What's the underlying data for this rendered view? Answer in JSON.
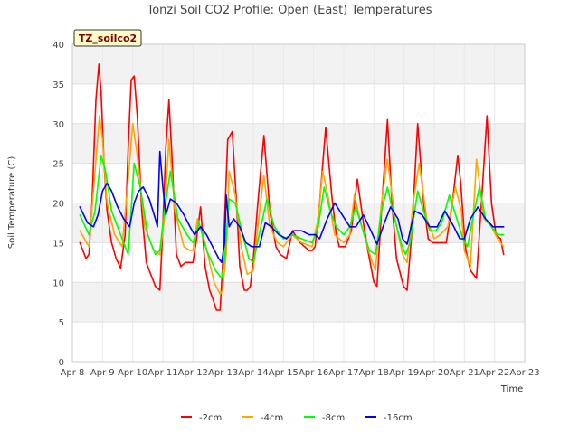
{
  "chart_data": {
    "type": "line",
    "title": "Tonzi Soil CO2 Profile: Open (East) Temperatures",
    "xlabel": "Time",
    "ylabel": "Soil Temperature (C)",
    "badge": "TZ_soilco2",
    "ylim": [
      0,
      40
    ],
    "yticks": [
      "0",
      "5",
      "10",
      "15",
      "20",
      "25",
      "30",
      "35",
      "40"
    ],
    "xlim": [
      8,
      23
    ],
    "xticks": [
      "Apr 8",
      "Apr 9",
      "Apr 10",
      "Apr 11",
      "Apr 12",
      "Apr 13",
      "Apr 14",
      "Apr 15",
      "Apr 16",
      "Apr 17",
      "Apr 18",
      "Apr 19",
      "Apr 20",
      "Apr 21",
      "Apr 22",
      "Apr 23"
    ],
    "grid": true,
    "legend_position": "bottom",
    "series": [
      {
        "name": "-2cm",
        "color": "#ff0000",
        "x": [
          8.25,
          8.45,
          8.55,
          8.65,
          8.78,
          8.88,
          8.95,
          9.05,
          9.15,
          9.3,
          9.45,
          9.6,
          9.75,
          9.85,
          9.95,
          10.05,
          10.15,
          10.3,
          10.45,
          10.6,
          10.75,
          10.9,
          11.0,
          11.1,
          11.2,
          11.3,
          11.45,
          11.6,
          11.75,
          11.9,
          12.0,
          12.1,
          12.25,
          12.4,
          12.55,
          12.65,
          12.78,
          12.9,
          12.98,
          13.05,
          13.15,
          13.3,
          13.45,
          13.55,
          13.7,
          13.8,
          13.9,
          14.0,
          14.15,
          14.35,
          14.55,
          14.75,
          14.9,
          15.1,
          15.3,
          15.55,
          15.7,
          15.85,
          15.95,
          16.05,
          16.2,
          16.4,
          16.6,
          16.75,
          16.85,
          16.95,
          17.05,
          17.25,
          17.45,
          17.65,
          17.8,
          17.9,
          18.0,
          18.1,
          18.25,
          18.45,
          18.6,
          18.75,
          18.88,
          18.98,
          19.1,
          19.25,
          19.45,
          19.65,
          19.8,
          19.95,
          20.05,
          20.2,
          20.4,
          20.6,
          20.78,
          20.88,
          20.98,
          21.05,
          21.2,
          21.4,
          21.6,
          21.75,
          21.9,
          22.05,
          22.2,
          22.3
        ],
        "values": [
          15,
          13,
          13.5,
          20,
          33,
          37.5,
          34,
          25,
          19,
          15,
          13,
          11.8,
          16,
          27,
          35.5,
          36,
          31,
          19,
          12.5,
          11,
          9.5,
          9,
          17,
          27,
          33,
          26,
          13.5,
          12,
          12.5,
          12.5,
          12.5,
          15,
          19.5,
          12,
          9,
          8,
          6.5,
          6.5,
          12,
          18,
          28,
          29,
          19.5,
          12,
          9,
          9,
          9.5,
          13,
          20,
          28.5,
          19,
          14.5,
          13.5,
          13,
          16.5,
          15,
          14.5,
          14,
          14,
          14.5,
          20,
          29.5,
          21,
          16,
          14.5,
          14.5,
          14.5,
          16.5,
          23,
          17.5,
          14,
          12,
          10,
          9.5,
          19,
          30.5,
          20,
          13,
          11,
          9.5,
          9,
          16,
          30,
          20,
          15.5,
          15,
          15,
          15,
          15,
          20,
          26,
          22.5,
          17,
          14,
          11.5,
          10.5,
          22,
          31,
          20,
          16,
          15.5,
          13.5
        ]
      },
      {
        "name": "-4cm",
        "color": "#ffa500",
        "x": [
          8.25,
          8.55,
          8.75,
          8.9,
          9.0,
          9.15,
          9.4,
          9.65,
          9.85,
          10.0,
          10.15,
          10.4,
          10.7,
          10.9,
          11.05,
          11.2,
          11.4,
          11.7,
          11.9,
          12.0,
          12.15,
          12.4,
          12.7,
          12.9,
          12.98,
          13.1,
          13.2,
          13.4,
          13.6,
          13.8,
          14.0,
          14.15,
          14.35,
          14.55,
          14.8,
          15.0,
          15.3,
          15.6,
          15.95,
          16.15,
          16.3,
          16.5,
          16.7,
          17.0,
          17.2,
          17.35,
          17.6,
          17.9,
          18.05,
          18.25,
          18.45,
          18.7,
          18.95,
          19.1,
          19.3,
          19.5,
          19.75,
          20.0,
          20.2,
          20.45,
          20.7,
          20.9,
          21.0,
          21.2,
          21.4,
          21.65,
          21.9,
          22.1,
          22.3
        ],
        "values": [
          16.5,
          14.5,
          24,
          31,
          28,
          20,
          16,
          14.5,
          23,
          30,
          26,
          17,
          14,
          13.5,
          18,
          28,
          19,
          14.5,
          14,
          14,
          18,
          15,
          10,
          8.5,
          9,
          13.5,
          24,
          21,
          14.5,
          11,
          11.5,
          17,
          23.5,
          17,
          15,
          14.5,
          16,
          15,
          14.5,
          18,
          24,
          20.5,
          16,
          15,
          16,
          21,
          17,
          13,
          11.5,
          20,
          25.5,
          18,
          13.5,
          12.5,
          20,
          25,
          18,
          15.5,
          16,
          17,
          22,
          19,
          14,
          12,
          25.5,
          18,
          17,
          15.5,
          14.5
        ]
      },
      {
        "name": "-8cm",
        "color": "#00ff00",
        "x": [
          8.25,
          8.55,
          8.75,
          8.95,
          9.1,
          9.3,
          9.6,
          9.85,
          10.05,
          10.25,
          10.5,
          10.75,
          10.9,
          11.05,
          11.25,
          11.5,
          11.8,
          12.0,
          12.2,
          12.45,
          12.75,
          12.95,
          13.05,
          13.2,
          13.4,
          13.65,
          13.85,
          14.0,
          14.25,
          14.45,
          14.7,
          15.0,
          15.3,
          15.6,
          15.95,
          16.15,
          16.35,
          16.55,
          16.75,
          17.0,
          17.2,
          17.4,
          17.6,
          17.85,
          18.05,
          18.25,
          18.45,
          18.65,
          18.9,
          19.05,
          19.2,
          19.45,
          19.65,
          19.85,
          20.05,
          20.25,
          20.5,
          20.75,
          20.95,
          21.1,
          21.3,
          21.5,
          21.7,
          21.9,
          22.1,
          22.3
        ],
        "values": [
          18.5,
          16,
          19,
          26,
          24,
          19,
          16,
          13.5,
          25,
          22,
          16,
          13.5,
          14,
          19,
          24,
          18,
          16,
          15,
          17.5,
          14,
          11.5,
          10.5,
          13,
          20.5,
          20,
          16,
          13,
          12.5,
          17,
          20.5,
          17,
          15.5,
          16,
          15.5,
          15,
          17,
          22,
          19,
          17,
          16,
          17,
          19.5,
          17,
          14,
          13.5,
          19,
          22,
          18.5,
          15,
          13.5,
          15,
          21.5,
          19,
          16.5,
          16.5,
          17.5,
          21,
          18,
          15.5,
          14.5,
          18.5,
          22,
          18,
          17,
          16,
          16
        ]
      },
      {
        "name": "-16cm",
        "color": "#0000ff",
        "x": [
          8.25,
          8.5,
          8.7,
          8.85,
          9.0,
          9.15,
          9.3,
          9.5,
          9.7,
          9.9,
          10.05,
          10.2,
          10.35,
          10.55,
          10.75,
          10.82,
          10.9,
          11.0,
          11.1,
          11.25,
          11.45,
          11.7,
          11.9,
          12.05,
          12.25,
          12.45,
          12.65,
          12.85,
          12.95,
          13.05,
          13.1,
          13.2,
          13.35,
          13.55,
          13.75,
          13.95,
          14.2,
          14.4,
          14.6,
          14.85,
          15.1,
          15.35,
          15.6,
          15.85,
          16.05,
          16.2,
          16.45,
          16.7,
          16.95,
          17.2,
          17.4,
          17.65,
          17.9,
          18.1,
          18.35,
          18.55,
          18.8,
          18.95,
          19.1,
          19.35,
          19.6,
          19.85,
          20.1,
          20.35,
          20.65,
          20.85,
          21.0,
          21.2,
          21.45,
          21.7,
          21.95,
          22.15,
          22.3
        ],
        "values": [
          19.5,
          17.5,
          17,
          18.5,
          21.5,
          22.5,
          21.5,
          19.5,
          18,
          17,
          20,
          21.5,
          22,
          20.5,
          18,
          17,
          26.5,
          22,
          18.5,
          20.5,
          20,
          18.5,
          17,
          16,
          17,
          16,
          14.5,
          13,
          12.5,
          15,
          21,
          17,
          18,
          17,
          15,
          14.5,
          14.5,
          17.5,
          17,
          16,
          15.5,
          16.5,
          16.5,
          16,
          16,
          15.5,
          18,
          20,
          18.5,
          17,
          17,
          18.5,
          16.5,
          14.8,
          17.5,
          19.5,
          18,
          15.5,
          14.8,
          19,
          18.5,
          17,
          17,
          19,
          17,
          15.5,
          15.5,
          18,
          19.5,
          18,
          17,
          17,
          17
        ]
      }
    ]
  }
}
